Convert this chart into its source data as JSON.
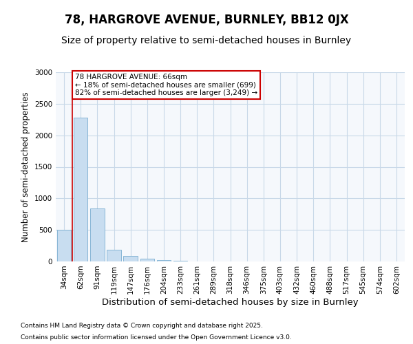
{
  "title": "78, HARGROVE AVENUE, BURNLEY, BB12 0JX",
  "subtitle": "Size of property relative to semi-detached houses in Burnley",
  "xlabel": "Distribution of semi-detached houses by size in Burnley",
  "ylabel": "Number of semi-detached properties",
  "categories": [
    "34sqm",
    "62sqm",
    "91sqm",
    "119sqm",
    "147sqm",
    "176sqm",
    "204sqm",
    "233sqm",
    "261sqm",
    "289sqm",
    "318sqm",
    "346sqm",
    "375sqm",
    "403sqm",
    "432sqm",
    "460sqm",
    "488sqm",
    "517sqm",
    "545sqm",
    "574sqm",
    "602sqm"
  ],
  "values": [
    500,
    2280,
    840,
    190,
    90,
    40,
    20,
    10,
    5,
    3,
    2,
    1,
    0,
    0,
    0,
    0,
    0,
    0,
    0,
    0,
    0
  ],
  "bar_color": "#c8ddf0",
  "bar_edge_color": "#7aaed0",
  "grid_color": "#c8d8e8",
  "background_color": "#f5f8fc",
  "vline_color": "#cc0000",
  "annotation_text": "78 HARGROVE AVENUE: 66sqm\n← 18% of semi-detached houses are smaller (699)\n82% of semi-detached houses are larger (3,249) →",
  "annotation_box_color": "#cc0000",
  "ylim": [
    0,
    3000
  ],
  "footer_line1": "Contains HM Land Registry data © Crown copyright and database right 2025.",
  "footer_line2": "Contains public sector information licensed under the Open Government Licence v3.0.",
  "title_fontsize": 12,
  "subtitle_fontsize": 10,
  "tick_fontsize": 7.5,
  "ylabel_fontsize": 8.5,
  "xlabel_fontsize": 9.5
}
